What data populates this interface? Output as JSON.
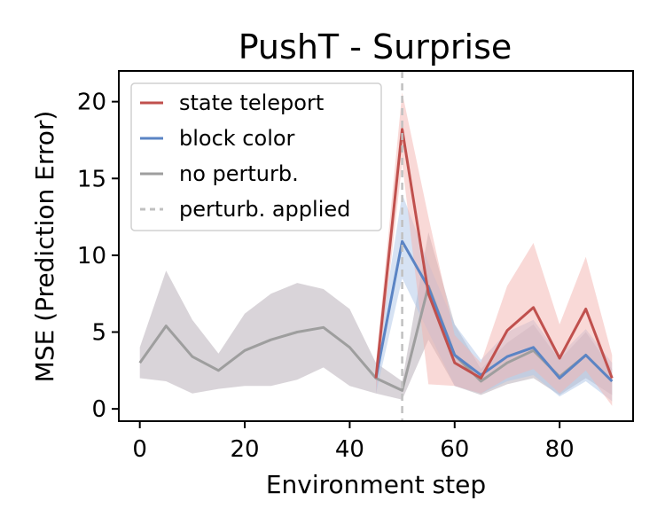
{
  "chart_data": {
    "type": "line",
    "title": "PushT - Surprise",
    "xlabel": "Environment step",
    "ylabel": "MSE (Prediction Error)",
    "xlim": [
      -4,
      94
    ],
    "ylim": [
      -0.8,
      22
    ],
    "xticks": [
      0,
      20,
      40,
      60,
      80
    ],
    "yticks": [
      0,
      5,
      10,
      15,
      20
    ],
    "perturb_step": 50,
    "legend_position": "top-left",
    "series": [
      {
        "name": "no perturb.",
        "color": "#9e9e9e",
        "band_color": "#b3a9b3",
        "x": [
          0,
          5,
          10,
          15,
          20,
          25,
          30,
          35,
          40,
          45,
          50,
          55,
          60,
          65,
          70,
          75,
          80,
          85,
          90
        ],
        "values": [
          3.0,
          5.4,
          3.4,
          2.5,
          3.8,
          4.5,
          5.0,
          5.3,
          4.0,
          2.0,
          1.2,
          8.0,
          3.5,
          1.8,
          3.0,
          3.8,
          2.1,
          3.5,
          1.8
        ],
        "lower": [
          2.0,
          1.8,
          1.0,
          1.3,
          1.5,
          1.5,
          1.9,
          2.7,
          1.5,
          1.0,
          0.6,
          4.5,
          1.5,
          0.9,
          1.6,
          2.0,
          0.9,
          2.0,
          0.9
        ],
        "upper": [
          4.0,
          9.0,
          5.8,
          3.6,
          6.2,
          7.5,
          8.2,
          7.8,
          6.5,
          3.0,
          1.8,
          11.5,
          5.5,
          2.6,
          4.3,
          5.5,
          3.2,
          5.0,
          2.6
        ]
      },
      {
        "name": "block color",
        "color": "#5b84c4",
        "band_color": "#aec6e8",
        "x": [
          45,
          50,
          55,
          60,
          65,
          70,
          75,
          80,
          85,
          90
        ],
        "values": [
          2.0,
          10.9,
          7.9,
          3.5,
          2.2,
          3.4,
          4.0,
          2.0,
          3.5,
          1.8
        ],
        "lower": [
          1.0,
          8.5,
          5.0,
          1.5,
          1.0,
          1.8,
          2.2,
          0.8,
          1.8,
          0.5
        ],
        "upper": [
          3.0,
          14.0,
          9.5,
          5.5,
          3.2,
          5.0,
          5.8,
          3.5,
          5.2,
          3.0
        ]
      },
      {
        "name": "state teleport",
        "color": "#c0504d",
        "band_color": "#f3b3b0",
        "x": [
          45,
          50,
          55,
          60,
          65,
          70,
          75,
          80,
          85,
          90
        ],
        "values": [
          2.0,
          18.2,
          7.5,
          3.0,
          2.0,
          5.1,
          6.6,
          3.3,
          6.5,
          2.0
        ],
        "lower": [
          1.0,
          16.0,
          1.6,
          1.5,
          1.0,
          2.0,
          2.6,
          1.0,
          2.5,
          0.2
        ],
        "upper": [
          3.0,
          20.6,
          12.5,
          4.8,
          3.0,
          8.0,
          10.8,
          5.5,
          9.9,
          3.5
        ]
      }
    ],
    "legend": [
      {
        "label": "state teleport",
        "color": "#c0504d",
        "style": "solid"
      },
      {
        "label": "block color",
        "color": "#5b84c4",
        "style": "solid"
      },
      {
        "label": "no perturb.",
        "color": "#9e9e9e",
        "style": "solid"
      },
      {
        "label": "perturb. applied",
        "color": "#c0c0c0",
        "style": "dashed"
      }
    ]
  }
}
